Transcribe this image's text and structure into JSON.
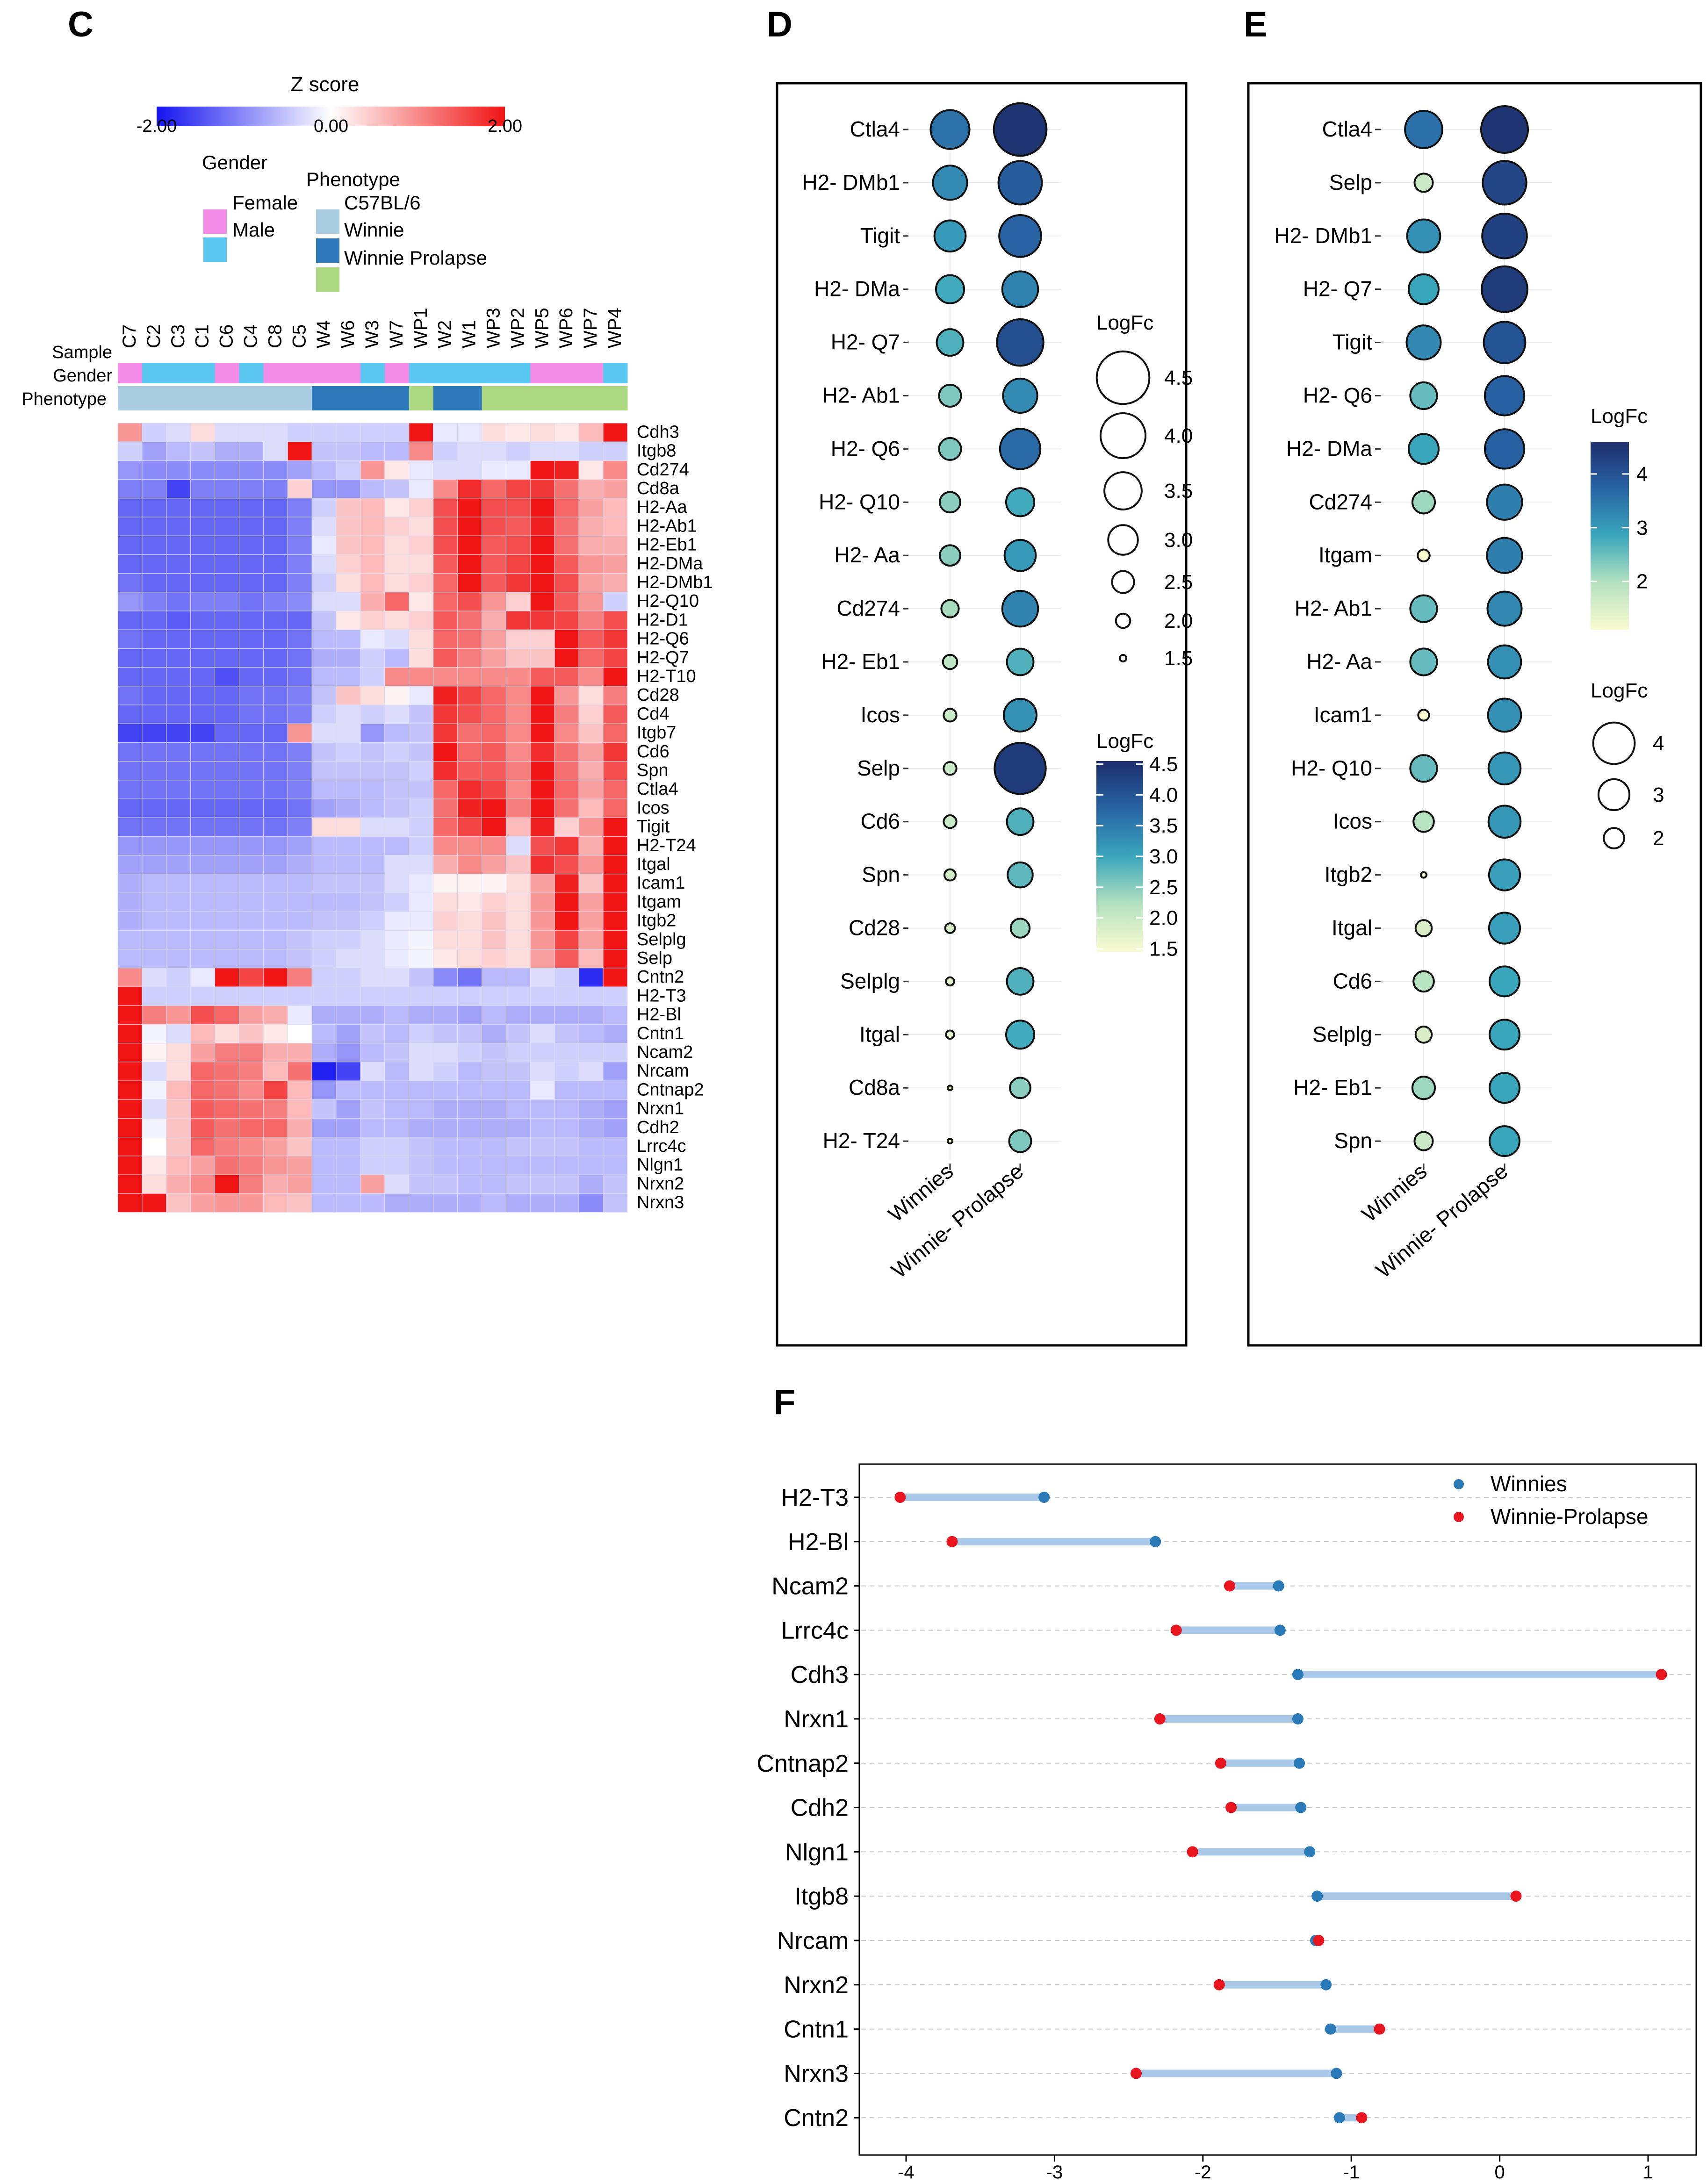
{
  "panels": {
    "c": "C",
    "d": "D",
    "e": "E",
    "f": "F"
  },
  "colors": {
    "zlow": "#1414f0",
    "zmid": "#ffffff",
    "zhigh": "#f01414",
    "female": "#f28ce6",
    "male": "#5ac8f0",
    "c57": "#a9cce0",
    "winnie": "#2c78b8",
    "prolapse": "#acd882",
    "winnies_dot": "#2a7ab8",
    "prolapse_dot": "#e8141e",
    "segment": "#a9c7e6"
  },
  "heatmap": {
    "zscore_title": "Z score",
    "zscore_ticks": [
      "-2.00",
      "0.00",
      "2.00"
    ],
    "zscale": [
      -2,
      2
    ],
    "gender_title": "Gender",
    "gender_items": [
      "Female",
      "Male"
    ],
    "phenotype_title": "Phenotype",
    "phenotype_items": [
      "C57BL/6",
      "Winnie",
      "Winnie Prolapse"
    ],
    "track_labels": [
      "Sample",
      "Gender",
      "Phenotype"
    ],
    "samples": [
      "C7",
      "C2",
      "C3",
      "C1",
      "C6",
      "C4",
      "C8",
      "C5",
      "W4",
      "W6",
      "W3",
      "W7",
      "WP1",
      "W2",
      "W1",
      "WP3",
      "WP2",
      "WP5",
      "WP6",
      "WP7",
      "WP4"
    ],
    "gender": [
      "F",
      "M",
      "M",
      "M",
      "F",
      "M",
      "F",
      "F",
      "F",
      "F",
      "M",
      "F",
      "M",
      "M",
      "M",
      "M",
      "M",
      "F",
      "F",
      "F",
      "M"
    ],
    "phenotype": [
      "C",
      "C",
      "C",
      "C",
      "C",
      "C",
      "C",
      "C",
      "W",
      "W",
      "W",
      "W",
      "P",
      "W",
      "W",
      "P",
      "P",
      "P",
      "P",
      "P",
      "P"
    ],
    "genes": [
      "Cdh3",
      "Itgb8",
      "Cd274",
      "Cd8a",
      "H2-Aa",
      "H2-Ab1",
      "H2-Eb1",
      "H2-DMa",
      "H2-DMb1",
      "H2-Q10",
      "H2-D1",
      "H2-Q6",
      "H2-Q7",
      "H2-T10",
      "Cd28",
      "Cd4",
      "Itgb7",
      "Cd6",
      "Spn",
      "Ctla4",
      "Icos",
      "Tigit",
      "H2-T24",
      "Itgal",
      "Icam1",
      "Itgam",
      "Itgb2",
      "Selplg",
      "Selp",
      "Cntn2",
      "H2-T3",
      "H2-Bl",
      "Cntn1",
      "Ncam2",
      "Nrcam",
      "Cntnap2",
      "Nrxn1",
      "Cdh2",
      "Lrrc4c",
      "Nlgn1",
      "Nrxn2",
      "Nrxn3"
    ],
    "values": [
      [
        0.9,
        -0.4,
        -0.3,
        0.3,
        -0.3,
        -0.3,
        -0.3,
        -0.4,
        -0.4,
        -0.4,
        -0.4,
        -0.4,
        2.0,
        -0.2,
        -0.2,
        0.3,
        0.2,
        0.3,
        0.2,
        0.6,
        2.0
      ],
      [
        -0.4,
        -0.8,
        -0.6,
        -0.5,
        -0.7,
        -0.7,
        -0.3,
        2.0,
        -0.5,
        -0.5,
        -0.6,
        -0.6,
        1.0,
        -0.4,
        -0.3,
        -0.3,
        -0.4,
        -0.3,
        -0.3,
        -0.4,
        -0.4
      ],
      [
        -0.9,
        -1.0,
        -1.0,
        -1.0,
        -1.0,
        -1.0,
        -1.0,
        -0.8,
        -0.6,
        -0.4,
        0.9,
        0.2,
        -0.2,
        -0.3,
        -0.3,
        -0.2,
        -0.2,
        2.0,
        1.9,
        0.2,
        1.0
      ],
      [
        -1.1,
        -1.1,
        -1.6,
        -1.1,
        -1.1,
        -1.1,
        -1.1,
        0.4,
        -0.9,
        -0.9,
        -0.6,
        -0.5,
        -0.2,
        1.0,
        1.8,
        1.3,
        1.6,
        1.7,
        1.2,
        0.7,
        0.8
      ],
      [
        -1.3,
        -1.3,
        -1.3,
        -1.3,
        -1.3,
        -1.3,
        -1.3,
        -1.1,
        -0.4,
        0.5,
        0.6,
        0.2,
        0.4,
        1.5,
        2.0,
        1.5,
        1.5,
        2.0,
        1.3,
        0.8,
        0.6
      ],
      [
        -1.3,
        -1.3,
        -1.3,
        -1.3,
        -1.3,
        -1.3,
        -1.3,
        -1.1,
        -0.3,
        0.5,
        0.6,
        0.4,
        0.3,
        1.5,
        2.0,
        1.5,
        1.4,
        1.9,
        1.2,
        0.7,
        0.6
      ],
      [
        -1.3,
        -1.3,
        -1.3,
        -1.3,
        -1.3,
        -1.3,
        -1.3,
        -1.1,
        -0.2,
        0.5,
        0.6,
        0.3,
        0.4,
        1.5,
        2.0,
        1.4,
        1.5,
        2.0,
        1.2,
        0.7,
        0.7
      ],
      [
        -1.3,
        -1.3,
        -1.3,
        -1.3,
        -1.3,
        -1.3,
        -1.3,
        -1.1,
        -0.3,
        0.4,
        0.6,
        0.3,
        0.3,
        1.4,
        2.0,
        1.4,
        1.6,
        2.0,
        1.4,
        0.9,
        0.8
      ],
      [
        -1.2,
        -1.3,
        -1.3,
        -1.3,
        -1.3,
        -1.3,
        -1.3,
        -1.1,
        -0.4,
        0.3,
        0.6,
        0.3,
        0.4,
        1.3,
        2.0,
        1.4,
        1.7,
        2.0,
        1.5,
        0.8,
        0.7
      ],
      [
        -0.9,
        -1.1,
        -1.2,
        -1.1,
        -1.1,
        -1.2,
        -1.1,
        -1.0,
        -0.3,
        -0.3,
        0.7,
        1.3,
        0.2,
        1.3,
        1.5,
        0.9,
        0.4,
        2.0,
        1.4,
        0.9,
        -0.4
      ],
      [
        -1.3,
        -1.3,
        -1.4,
        -1.3,
        -1.3,
        -1.3,
        -1.3,
        -1.3,
        -0.5,
        0.2,
        0.4,
        0.3,
        0.4,
        1.4,
        1.2,
        0.7,
        1.7,
        1.7,
        1.6,
        1.1,
        1.5
      ],
      [
        -1.2,
        -1.3,
        -1.3,
        -1.3,
        -1.3,
        -1.3,
        -1.3,
        -1.2,
        -0.6,
        -0.6,
        -0.2,
        -0.3,
        0.3,
        1.3,
        1.2,
        0.8,
        0.4,
        0.4,
        2.0,
        1.4,
        1.7
      ],
      [
        -1.3,
        -1.3,
        -1.3,
        -1.3,
        -1.3,
        -1.3,
        -1.3,
        -1.2,
        -0.7,
        -0.7,
        -0.4,
        -0.6,
        0.3,
        1.4,
        1.1,
        0.8,
        0.5,
        0.5,
        2.0,
        1.3,
        1.6
      ],
      [
        -1.3,
        -1.3,
        -1.3,
        -1.3,
        -1.5,
        -1.3,
        -1.3,
        -1.2,
        -0.6,
        -0.6,
        -0.4,
        1.0,
        1.0,
        1.0,
        1.0,
        1.0,
        1.0,
        1.4,
        1.4,
        1.0,
        2.0
      ],
      [
        -1.2,
        -1.3,
        -1.3,
        -1.3,
        -1.3,
        -1.2,
        -1.2,
        -1.1,
        -0.5,
        0.5,
        0.3,
        0.1,
        -0.2,
        1.9,
        1.6,
        1.3,
        1.0,
        2.0,
        0.9,
        0.3,
        1.1
      ],
      [
        -1.3,
        -1.3,
        -1.3,
        -1.3,
        -1.3,
        -1.2,
        -1.2,
        -1.1,
        -0.4,
        -0.3,
        -0.4,
        -0.3,
        -0.5,
        1.7,
        1.5,
        1.3,
        1.0,
        2.0,
        1.1,
        0.4,
        1.4
      ],
      [
        -1.6,
        -1.6,
        -1.6,
        -1.6,
        -1.3,
        -1.3,
        -1.3,
        0.9,
        -0.3,
        -0.3,
        -0.9,
        -0.6,
        -0.5,
        1.7,
        1.2,
        1.3,
        1.0,
        2.0,
        1.0,
        0.5,
        1.3
      ],
      [
        -1.2,
        -1.2,
        -1.2,
        -1.2,
        -1.2,
        -1.2,
        -1.2,
        -1.1,
        -0.5,
        -0.4,
        -0.5,
        -0.4,
        -0.5,
        2.0,
        1.3,
        1.4,
        1.0,
        1.8,
        1.2,
        0.8,
        1.7
      ],
      [
        -1.2,
        -1.2,
        -1.2,
        -1.2,
        -1.2,
        -1.2,
        -1.2,
        -1.1,
        -0.5,
        -0.5,
        -0.5,
        -0.5,
        -0.4,
        1.8,
        1.4,
        1.4,
        1.1,
        2.0,
        1.2,
        0.7,
        1.5
      ],
      [
        -1.2,
        -1.2,
        -1.2,
        -1.2,
        -1.2,
        -1.2,
        -1.2,
        -1.1,
        -0.6,
        -0.6,
        -0.6,
        -0.5,
        -0.5,
        1.3,
        1.8,
        1.6,
        1.0,
        2.0,
        1.3,
        0.8,
        1.3
      ],
      [
        -1.3,
        -1.3,
        -1.3,
        -1.3,
        -1.3,
        -1.3,
        -1.3,
        -1.2,
        -0.8,
        -0.7,
        -0.6,
        -0.5,
        -0.4,
        1.2,
        1.9,
        2.0,
        1.1,
        2.0,
        1.2,
        0.6,
        1.3
      ],
      [
        -1.2,
        -1.2,
        -1.2,
        -1.2,
        -1.2,
        -1.2,
        -1.2,
        -1.1,
        0.3,
        0.3,
        -0.3,
        -0.3,
        -0.4,
        1.3,
        1.6,
        2.0,
        0.6,
        1.9,
        0.4,
        0.9,
        2.0
      ],
      [
        -0.9,
        -0.9,
        -0.9,
        -0.9,
        -0.9,
        -0.9,
        -0.9,
        -0.8,
        -0.6,
        -0.6,
        -0.6,
        -0.6,
        -0.4,
        1.0,
        1.0,
        1.0,
        -0.3,
        1.5,
        1.7,
        0.7,
        2.0
      ],
      [
        -0.8,
        -0.8,
        -0.8,
        -0.8,
        -0.8,
        -0.8,
        -0.8,
        -0.7,
        -0.6,
        -0.6,
        -0.6,
        -0.3,
        -0.3,
        0.7,
        1.0,
        0.8,
        0.5,
        1.8,
        1.5,
        0.9,
        2.0
      ],
      [
        -0.7,
        -0.6,
        -0.6,
        -0.6,
        -0.6,
        -0.6,
        -0.6,
        -0.6,
        -0.5,
        -0.5,
        -0.5,
        -0.3,
        -0.2,
        0.1,
        0.1,
        0.1,
        0.3,
        0.8,
        1.9,
        0.5,
        2.0
      ],
      [
        -0.7,
        -0.6,
        -0.6,
        -0.6,
        -0.6,
        -0.6,
        -0.6,
        -0.6,
        -0.6,
        -0.6,
        -0.5,
        -0.4,
        -0.2,
        0.3,
        0.2,
        0.4,
        0.3,
        0.9,
        2.0,
        0.8,
        2.0
      ],
      [
        -0.7,
        -0.6,
        -0.6,
        -0.6,
        -0.6,
        -0.6,
        -0.6,
        -0.6,
        -0.5,
        -0.5,
        -0.4,
        -0.2,
        -0.2,
        0.4,
        0.3,
        0.5,
        0.3,
        0.9,
        2.0,
        0.8,
        2.0
      ],
      [
        -0.6,
        -0.6,
        -0.6,
        -0.6,
        -0.6,
        -0.6,
        -0.6,
        -0.5,
        -0.4,
        -0.4,
        -0.3,
        -0.2,
        -0.1,
        0.3,
        0.3,
        0.5,
        0.3,
        0.9,
        1.6,
        0.8,
        2.0
      ],
      [
        -0.6,
        -0.6,
        -0.6,
        -0.6,
        -0.6,
        -0.6,
        -0.6,
        -0.5,
        -0.4,
        -0.3,
        -0.3,
        -0.2,
        -0.1,
        0.2,
        0.3,
        0.4,
        0.3,
        0.8,
        1.4,
        0.6,
        2.0
      ],
      [
        1.0,
        -0.3,
        -0.4,
        -0.2,
        2.0,
        1.6,
        2.0,
        1.1,
        -0.4,
        -0.4,
        -0.3,
        -0.3,
        -0.5,
        -1.0,
        -1.2,
        -0.6,
        -0.6,
        -0.3,
        -0.4,
        -1.8,
        2.0
      ],
      [
        2.0,
        -0.4,
        -0.4,
        -0.4,
        -0.4,
        -0.4,
        -0.4,
        -0.4,
        -0.4,
        -0.4,
        -0.4,
        -0.4,
        -0.4,
        -0.4,
        -0.4,
        -0.4,
        -0.4,
        -0.4,
        -0.4,
        -0.4,
        -0.4
      ],
      [
        2.0,
        1.1,
        0.9,
        1.5,
        1.3,
        0.8,
        0.7,
        -0.2,
        -0.7,
        -0.7,
        -0.7,
        -0.6,
        -0.7,
        -0.7,
        -0.8,
        -0.6,
        -0.7,
        -0.7,
        -0.7,
        -0.7,
        -0.6
      ],
      [
        2.0,
        -0.1,
        -0.3,
        0.6,
        0.3,
        0.5,
        0.2,
        0.0,
        -0.6,
        -0.8,
        -0.5,
        -0.6,
        -0.4,
        -0.5,
        -0.5,
        -0.7,
        -0.5,
        -0.3,
        -0.5,
        -0.6,
        -0.7
      ],
      [
        2.0,
        0.1,
        0.3,
        0.8,
        1.1,
        1.1,
        0.7,
        0.7,
        -0.7,
        -0.9,
        -0.6,
        -0.5,
        -0.3,
        -0.3,
        -0.4,
        -0.5,
        -0.4,
        -0.4,
        -0.4,
        -0.4,
        -0.4
      ],
      [
        2.0,
        -0.3,
        0.3,
        1.3,
        1.2,
        1.1,
        0.6,
        1.2,
        -1.9,
        -1.6,
        -0.3,
        -0.6,
        -0.3,
        -0.4,
        -0.6,
        -0.5,
        -0.5,
        -0.3,
        -0.4,
        -0.3,
        -0.8
      ],
      [
        2.0,
        -0.1,
        0.6,
        1.3,
        1.2,
        1.0,
        1.6,
        0.6,
        -0.9,
        -0.6,
        -0.6,
        -0.6,
        -0.6,
        -0.6,
        -0.6,
        -0.6,
        -0.6,
        -0.2,
        -0.6,
        -0.6,
        -0.6
      ],
      [
        2.0,
        -0.3,
        0.5,
        1.4,
        1.3,
        1.2,
        1.1,
        0.6,
        -0.5,
        -0.8,
        -0.5,
        -0.6,
        -0.6,
        -0.7,
        -0.7,
        -0.7,
        -0.6,
        -0.6,
        -0.6,
        -0.7,
        -0.8
      ],
      [
        2.0,
        -0.1,
        0.5,
        1.4,
        1.2,
        1.3,
        1.3,
        0.7,
        -0.8,
        -0.8,
        -0.6,
        -0.6,
        -0.7,
        -0.7,
        -0.7,
        -0.7,
        -0.7,
        -0.6,
        -0.6,
        -0.7,
        -0.8
      ],
      [
        2.0,
        0.0,
        0.5,
        1.3,
        1.1,
        1.0,
        0.8,
        0.5,
        -0.6,
        -0.6,
        -0.4,
        -0.4,
        -0.5,
        -0.6,
        -0.6,
        -0.6,
        -0.5,
        -0.5,
        -0.5,
        -0.6,
        -0.6
      ],
      [
        2.0,
        0.2,
        0.6,
        0.8,
        1.2,
        1.1,
        0.9,
        0.8,
        -0.6,
        -0.6,
        -0.4,
        -0.4,
        -0.5,
        -0.6,
        -0.6,
        -0.6,
        -0.6,
        -0.6,
        -0.6,
        -0.6,
        -0.6
      ],
      [
        2.0,
        0.3,
        0.7,
        1.0,
        2.0,
        1.1,
        0.7,
        0.8,
        -0.6,
        -0.6,
        0.8,
        -0.3,
        -0.5,
        -0.5,
        -0.6,
        -0.6,
        -0.5,
        -0.5,
        -0.5,
        -0.7,
        -0.5
      ],
      [
        2.0,
        2.0,
        0.5,
        0.8,
        0.9,
        0.9,
        0.6,
        0.5,
        -0.6,
        -0.6,
        -0.6,
        -0.7,
        -0.7,
        -0.7,
        -0.7,
        -0.6,
        -0.7,
        -0.7,
        -0.7,
        -1.0,
        -0.5
      ]
    ]
  },
  "chart_data": [
    {
      "type": "scatter",
      "panel": "D",
      "categories": [
        "Ctla4",
        "H2- DMb1",
        "Tigit",
        "H2- DMa",
        "H2- Q7",
        "H2- Ab1",
        "H2- Q6",
        "H2- Q10",
        "H2- Aa",
        "Cd274",
        "H2- Eb1",
        "Icos",
        "Selp",
        "Cd6",
        "Spn",
        "Cd28",
        "Selplg",
        "Itgal",
        "Cd8a",
        "H2- T24"
      ],
      "groups": [
        "Winnies",
        "Winnie- Prolapse"
      ],
      "series": [
        {
          "name": "Winnies",
          "values": [
            3.6,
            3.3,
            3.1,
            2.9,
            2.8,
            2.5,
            2.5,
            2.4,
            2.4,
            2.2,
            2.0,
            1.9,
            1.9,
            1.9,
            1.8,
            1.7,
            1.6,
            1.6,
            1.3,
            1.2
          ]
        },
        {
          "name": "Winnie- Prolapse",
          "values": [
            4.5,
            3.9,
            3.8,
            3.4,
            4.1,
            3.3,
            3.7,
            2.9,
            3.1,
            3.4,
            2.8,
            3.2,
            4.4,
            2.8,
            2.7,
            2.3,
            2.8,
            2.9,
            2.4,
            2.5
          ]
        }
      ],
      "size_legend_title": "LogFc",
      "size_legend_values": [
        "4.5",
        "4.0",
        "3.5",
        "3.0",
        "2.5",
        "2.0",
        "1.5"
      ],
      "color_legend_title": "LogFc",
      "color_legend_ticks": [
        "4.5",
        "4.0",
        "3.5",
        "3.0",
        "2.5",
        "2.0",
        "1.5"
      ],
      "color_range": [
        1.3,
        4.6
      ]
    },
    {
      "type": "scatter",
      "panel": "E",
      "categories": [
        "Ctla4",
        "Selp",
        "H2- DMb1",
        "H2- Q7",
        "Tigit",
        "H2- Q6",
        "H2- DMa",
        "Cd274",
        "Itgam",
        "H2- Ab1",
        "H2- Aa",
        "Icam1",
        "H2- Q10",
        "Icos",
        "Itgb2",
        "Itgal",
        "Cd6",
        "Selplg",
        "H2- Eb1",
        "Spn"
      ],
      "groups": [
        "Winnies",
        "Winnie- Prolapse"
      ],
      "series": [
        {
          "name": "Winnies",
          "values": [
            3.6,
            1.8,
            3.2,
            2.9,
            3.3,
            2.6,
            2.9,
            2.2,
            1.2,
            2.6,
            2.6,
            1.1,
            2.6,
            2.0,
            0.6,
            1.6,
            2.0,
            1.6,
            2.2,
            1.8
          ]
        },
        {
          "name": "Winnie- Prolapse",
          "values": [
            4.5,
            4.2,
            4.3,
            4.4,
            4.0,
            3.8,
            3.8,
            3.4,
            3.4,
            3.3,
            3.2,
            3.2,
            3.1,
            3.1,
            3.0,
            3.0,
            2.9,
            2.9,
            2.9,
            2.9
          ]
        }
      ],
      "color_legend_title": "LogFc",
      "color_legend_ticks": [
        "4",
        "3",
        "2"
      ],
      "color_range": [
        1.2,
        4.6
      ],
      "size_legend_title": "LogFc",
      "size_legend_values": [
        "4",
        "3",
        "2"
      ]
    },
    {
      "type": "dumbbell",
      "panel": "F",
      "categories": [
        "H2-T3",
        "H2-Bl",
        "Ncam2",
        "Lrrc4c",
        "Cdh3",
        "Nrxn1",
        "Cntnap2",
        "Cdh2",
        "Nlgn1",
        "Itgb8",
        "Nrcam",
        "Nrxn2",
        "Cntn1",
        "Nrxn3",
        "Cntn2"
      ],
      "series": [
        {
          "name": "Winnies",
          "values": [
            -3.07,
            -2.32,
            -1.49,
            -1.48,
            -1.36,
            -1.36,
            -1.35,
            -1.34,
            -1.28,
            -1.23,
            -1.24,
            -1.17,
            -1.14,
            -1.1,
            -1.08
          ]
        },
        {
          "name": "Winnie-Prolapse",
          "values": [
            -4.04,
            -3.69,
            -1.82,
            -2.18,
            1.09,
            -2.29,
            -1.88,
            -1.81,
            -2.07,
            0.11,
            -1.22,
            -1.89,
            -0.81,
            -2.45,
            -0.93
          ]
        }
      ],
      "xlim": [
        -4.35,
        1.3
      ],
      "xticks": [
        "-4",
        "-3",
        "-2",
        "-1",
        "0",
        "1"
      ],
      "xtick_values": [
        -4,
        -3,
        -2,
        -1,
        0,
        1
      ],
      "grid": true,
      "legend_position": "top-right"
    }
  ]
}
